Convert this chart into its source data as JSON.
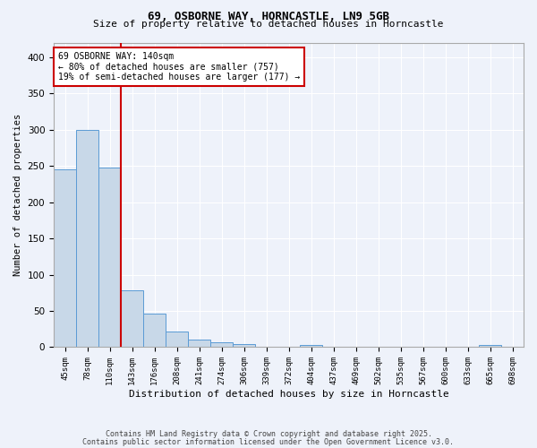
{
  "title1": "69, OSBORNE WAY, HORNCASTLE, LN9 5GB",
  "title2": "Size of property relative to detached houses in Horncastle",
  "xlabel": "Distribution of detached houses by size in Horncastle",
  "ylabel": "Number of detached properties",
  "categories": [
    "45sqm",
    "78sqm",
    "110sqm",
    "143sqm",
    "176sqm",
    "208sqm",
    "241sqm",
    "274sqm",
    "306sqm",
    "339sqm",
    "372sqm",
    "404sqm",
    "437sqm",
    "469sqm",
    "502sqm",
    "535sqm",
    "567sqm",
    "600sqm",
    "633sqm",
    "665sqm",
    "698sqm"
  ],
  "values": [
    245,
    300,
    248,
    78,
    46,
    22,
    10,
    7,
    4,
    0,
    0,
    3,
    0,
    0,
    0,
    0,
    0,
    0,
    0,
    3,
    0
  ],
  "bar_color": "#c8d8e8",
  "bar_edge_color": "#5b9bd5",
  "red_line_x": 2.5,
  "annotation_line1": "69 OSBORNE WAY: 140sqm",
  "annotation_line2": "← 80% of detached houses are smaller (757)",
  "annotation_line3": "19% of semi-detached houses are larger (177) →",
  "annotation_box_color": "#ffffff",
  "annotation_box_edge_color": "#cc0000",
  "vline_color": "#cc0000",
  "footer1": "Contains HM Land Registry data © Crown copyright and database right 2025.",
  "footer2": "Contains public sector information licensed under the Open Government Licence v3.0.",
  "bg_color": "#eef2fa",
  "grid_color": "#ffffff",
  "ylim": [
    0,
    420
  ],
  "yticks": [
    0,
    50,
    100,
    150,
    200,
    250,
    300,
    350,
    400
  ]
}
